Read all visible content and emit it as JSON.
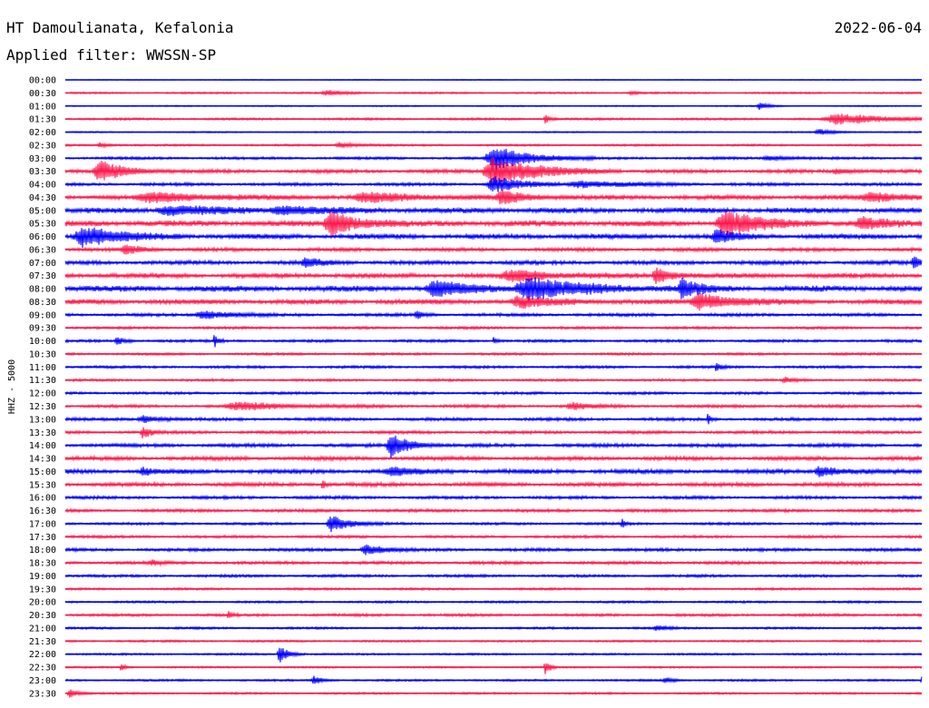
{
  "header": {
    "station": "HT Damoulianata, Kefalonia",
    "date": "2022-06-04",
    "filter_text": "Applied filter: WWSSN-SP"
  },
  "chart_data": {
    "type": "helicorder",
    "ylabel": "HHZ - 5000",
    "colors": {
      "odd_row": "#0000ff",
      "even_row": "#ff1a4d",
      "background": "#ffffff"
    },
    "row_labels": [
      "00:00",
      "00:30",
      "01:00",
      "01:30",
      "02:00",
      "02:30",
      "03:00",
      "03:30",
      "04:00",
      "04:30",
      "05:00",
      "05:30",
      "06:00",
      "06:30",
      "07:00",
      "07:30",
      "08:00",
      "08:30",
      "09:00",
      "09:30",
      "10:00",
      "10:30",
      "11:00",
      "11:30",
      "12:00",
      "12:30",
      "13:00",
      "13:30",
      "14:00",
      "14:30",
      "15:00",
      "15:30",
      "16:00",
      "16:30",
      "17:00",
      "17:30",
      "18:00",
      "18:30",
      "19:00",
      "19:30",
      "20:00",
      "20:30",
      "21:00",
      "21:30",
      "22:00",
      "22:30",
      "23:00",
      "23:30"
    ],
    "row_noise_levels": [
      0.4,
      0.8,
      0.6,
      1.0,
      0.6,
      0.9,
      1.2,
      1.6,
      1.4,
      2.0,
      2.4,
      2.6,
      2.2,
      1.6,
      1.8,
      2.2,
      2.6,
      2.2,
      1.4,
      1.2,
      1.2,
      1.1,
      1.2,
      1.1,
      1.2,
      1.4,
      1.4,
      1.4,
      1.6,
      1.8,
      2.0,
      1.8,
      1.4,
      1.4,
      1.2,
      1.2,
      1.4,
      1.4,
      1.2,
      1.0,
      1.0,
      1.2,
      1.0,
      0.9,
      0.9,
      0.8,
      0.9,
      0.9
    ],
    "events": [
      {
        "row": 1,
        "t": 0.305,
        "amp": 3,
        "dur": 0.02
      },
      {
        "row": 1,
        "t": 0.66,
        "amp": 2,
        "dur": 0.01
      },
      {
        "row": 2,
        "t": 0.81,
        "amp": 4,
        "dur": 0.01
      },
      {
        "row": 3,
        "t": 0.56,
        "amp": 5,
        "dur": 0.006
      },
      {
        "row": 3,
        "t": 0.9,
        "amp": 6,
        "dur": 0.06
      },
      {
        "row": 4,
        "t": 0.88,
        "amp": 3,
        "dur": 0.02
      },
      {
        "row": 5,
        "t": 0.04,
        "amp": 3,
        "dur": 0.01
      },
      {
        "row": 5,
        "t": 0.32,
        "amp": 3,
        "dur": 0.02
      },
      {
        "row": 6,
        "t": 0.5,
        "amp": 14,
        "dur": 0.04
      },
      {
        "row": 6,
        "t": 0.82,
        "amp": 3,
        "dur": 0.02
      },
      {
        "row": 7,
        "t": 0.04,
        "amp": 11,
        "dur": 0.03
      },
      {
        "row": 7,
        "t": 0.5,
        "amp": 16,
        "dur": 0.05
      },
      {
        "row": 7,
        "t": 0.9,
        "amp": 3,
        "dur": 0.02
      },
      {
        "row": 8,
        "t": 0.5,
        "amp": 9,
        "dur": 0.03
      },
      {
        "row": 8,
        "t": 0.6,
        "amp": 4,
        "dur": 0.05
      },
      {
        "row": 9,
        "t": 0.1,
        "amp": 5,
        "dur": 0.07
      },
      {
        "row": 9,
        "t": 0.35,
        "amp": 5,
        "dur": 0.06
      },
      {
        "row": 9,
        "t": 0.51,
        "amp": 7,
        "dur": 0.03
      },
      {
        "row": 9,
        "t": 0.94,
        "amp": 5,
        "dur": 0.05
      },
      {
        "row": 10,
        "t": 0.12,
        "amp": 5,
        "dur": 0.06
      },
      {
        "row": 10,
        "t": 0.25,
        "amp": 4,
        "dur": 0.05
      },
      {
        "row": 11,
        "t": 0.31,
        "amp": 14,
        "dur": 0.03
      },
      {
        "row": 11,
        "t": 0.77,
        "amp": 14,
        "dur": 0.04
      },
      {
        "row": 11,
        "t": 0.93,
        "amp": 6,
        "dur": 0.03
      },
      {
        "row": 12,
        "t": 0.02,
        "amp": 12,
        "dur": 0.04
      },
      {
        "row": 12,
        "t": 0.76,
        "amp": 8,
        "dur": 0.02
      },
      {
        "row": 13,
        "t": 0.07,
        "amp": 5,
        "dur": 0.02
      },
      {
        "row": 14,
        "t": 0.28,
        "amp": 5,
        "dur": 0.02
      },
      {
        "row": 14,
        "t": 0.99,
        "amp": 6,
        "dur": 0.01
      },
      {
        "row": 15,
        "t": 0.52,
        "amp": 6,
        "dur": 0.05
      },
      {
        "row": 15,
        "t": 0.69,
        "amp": 8,
        "dur": 0.02
      },
      {
        "row": 16,
        "t": 0.43,
        "amp": 8,
        "dur": 0.04
      },
      {
        "row": 16,
        "t": 0.54,
        "amp": 12,
        "dur": 0.06
      },
      {
        "row": 16,
        "t": 0.72,
        "amp": 10,
        "dur": 0.02
      },
      {
        "row": 17,
        "t": 0.53,
        "amp": 6,
        "dur": 0.04
      },
      {
        "row": 17,
        "t": 0.74,
        "amp": 9,
        "dur": 0.04
      },
      {
        "row": 18,
        "t": 0.16,
        "amp": 5,
        "dur": 0.03
      },
      {
        "row": 18,
        "t": 0.41,
        "amp": 4,
        "dur": 0.01
      },
      {
        "row": 20,
        "t": 0.06,
        "amp": 4,
        "dur": 0.01
      },
      {
        "row": 20,
        "t": 0.174,
        "amp": 8,
        "dur": 0.004
      },
      {
        "row": 20,
        "t": 0.5,
        "amp": 4,
        "dur": 0.004
      },
      {
        "row": 22,
        "t": 0.76,
        "amp": 5,
        "dur": 0.005
      },
      {
        "row": 23,
        "t": 0.84,
        "amp": 3,
        "dur": 0.01
      },
      {
        "row": 25,
        "t": 0.2,
        "amp": 4,
        "dur": 0.06
      },
      {
        "row": 25,
        "t": 0.59,
        "amp": 4,
        "dur": 0.02
      },
      {
        "row": 26,
        "t": 0.09,
        "amp": 4,
        "dur": 0.02
      },
      {
        "row": 26,
        "t": 0.75,
        "amp": 6,
        "dur": 0.004
      },
      {
        "row": 27,
        "t": 0.09,
        "amp": 6,
        "dur": 0.01
      },
      {
        "row": 28,
        "t": 0.38,
        "amp": 14,
        "dur": 0.02
      },
      {
        "row": 30,
        "t": 0.09,
        "amp": 5,
        "dur": 0.01
      },
      {
        "row": 30,
        "t": 0.38,
        "amp": 4,
        "dur": 0.03
      },
      {
        "row": 30,
        "t": 0.88,
        "amp": 6,
        "dur": 0.02
      },
      {
        "row": 31,
        "t": 0.3,
        "amp": 5,
        "dur": 0.004
      },
      {
        "row": 34,
        "t": 0.31,
        "amp": 9,
        "dur": 0.02
      },
      {
        "row": 34,
        "t": 0.65,
        "amp": 5,
        "dur": 0.004
      },
      {
        "row": 36,
        "t": 0.35,
        "amp": 6,
        "dur": 0.02
      },
      {
        "row": 37,
        "t": 0.1,
        "amp": 3,
        "dur": 0.01
      },
      {
        "row": 41,
        "t": 0.19,
        "amp": 4,
        "dur": 0.005
      },
      {
        "row": 42,
        "t": 0.69,
        "amp": 3,
        "dur": 0.01
      },
      {
        "row": 44,
        "t": 0.25,
        "amp": 10,
        "dur": 0.01
      },
      {
        "row": 45,
        "t": 0.065,
        "amp": 4,
        "dur": 0.005
      },
      {
        "row": 45,
        "t": 0.56,
        "amp": 10,
        "dur": 0.005
      },
      {
        "row": 46,
        "t": 0.29,
        "amp": 5,
        "dur": 0.01
      },
      {
        "row": 46,
        "t": 0.7,
        "amp": 3,
        "dur": 0.01
      },
      {
        "row": 46,
        "t": 1.0,
        "amp": 5,
        "dur": 0.005
      },
      {
        "row": 47,
        "t": 0.005,
        "amp": 5,
        "dur": 0.01
      }
    ]
  }
}
